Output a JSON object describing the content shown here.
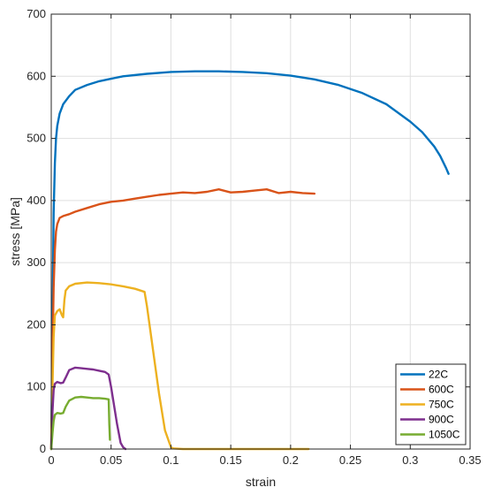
{
  "chart_data": {
    "type": "line",
    "title": "",
    "xlabel": "strain",
    "ylabel": "stress [MPa]",
    "xlim": [
      0,
      0.35
    ],
    "ylim": [
      0,
      700
    ],
    "xticks": [
      0,
      0.05,
      0.1,
      0.15,
      0.2,
      0.25,
      0.3,
      0.35
    ],
    "xtick_labels": [
      "0",
      "0.05",
      "0.1",
      "0.15",
      "0.2",
      "0.25",
      "0.3",
      "0.35"
    ],
    "yticks": [
      0,
      100,
      200,
      300,
      400,
      500,
      600,
      700
    ],
    "ytick_labels": [
      "0",
      "100",
      "200",
      "300",
      "400",
      "500",
      "600",
      "700"
    ],
    "grid": true,
    "legend_position": "bottom-right",
    "series": [
      {
        "name": "22C",
        "color": "#0072BD",
        "x": [
          0,
          0.001,
          0.002,
          0.003,
          0.004,
          0.005,
          0.007,
          0.01,
          0.015,
          0.02,
          0.03,
          0.04,
          0.05,
          0.06,
          0.08,
          0.1,
          0.12,
          0.14,
          0.16,
          0.18,
          0.2,
          0.22,
          0.24,
          0.26,
          0.28,
          0.3,
          0.31,
          0.32,
          0.325,
          0.33,
          0.332
        ],
        "y": [
          0,
          200,
          380,
          460,
          500,
          520,
          540,
          555,
          568,
          578,
          586,
          592,
          596,
          600,
          604,
          607,
          608,
          608,
          607,
          605,
          601,
          595,
          586,
          573,
          555,
          527,
          510,
          487,
          472,
          452,
          443
        ]
      },
      {
        "name": "600C",
        "color": "#D95319",
        "x": [
          0,
          0.001,
          0.002,
          0.003,
          0.004,
          0.005,
          0.007,
          0.01,
          0.015,
          0.02,
          0.03,
          0.04,
          0.05,
          0.06,
          0.07,
          0.08,
          0.09,
          0.1,
          0.11,
          0.12,
          0.13,
          0.14,
          0.15,
          0.16,
          0.17,
          0.18,
          0.19,
          0.2,
          0.21,
          0.22
        ],
        "y": [
          0,
          150,
          260,
          320,
          350,
          362,
          372,
          375,
          378,
          382,
          388,
          394,
          398,
          400,
          403,
          406,
          409,
          411,
          413,
          412,
          414,
          418,
          413,
          414,
          416,
          418,
          412,
          414,
          412,
          411
        ]
      },
      {
        "name": "750C",
        "color": "#EDB120",
        "x": [
          0,
          0.001,
          0.002,
          0.003,
          0.005,
          0.007,
          0.009,
          0.01,
          0.011,
          0.012,
          0.015,
          0.02,
          0.03,
          0.04,
          0.05,
          0.06,
          0.07,
          0.078,
          0.08,
          0.085,
          0.09,
          0.095,
          0.1,
          0.102,
          0.11,
          0.15,
          0.2,
          0.215
        ],
        "y": [
          0,
          100,
          180,
          215,
          222,
          225,
          215,
          212,
          240,
          255,
          262,
          266,
          268,
          267,
          265,
          262,
          258,
          253,
          230,
          160,
          90,
          30,
          3,
          1,
          0,
          0,
          0,
          0
        ]
      },
      {
        "name": "900C",
        "color": "#7E2F8E",
        "x": [
          0,
          0.001,
          0.002,
          0.003,
          0.005,
          0.008,
          0.01,
          0.012,
          0.015,
          0.02,
          0.025,
          0.03,
          0.035,
          0.04,
          0.045,
          0.048,
          0.05,
          0.055,
          0.058,
          0.06,
          0.062
        ],
        "y": [
          0,
          60,
          95,
          105,
          108,
          106,
          107,
          115,
          127,
          131,
          130,
          129,
          128,
          126,
          124,
          120,
          100,
          40,
          10,
          3,
          0
        ]
      },
      {
        "name": "1050C",
        "color": "#77AC30",
        "x": [
          0,
          0.001,
          0.002,
          0.003,
          0.005,
          0.008,
          0.01,
          0.012,
          0.015,
          0.02,
          0.025,
          0.03,
          0.035,
          0.04,
          0.045,
          0.048,
          0.0485,
          0.049
        ],
        "y": [
          0,
          25,
          45,
          55,
          58,
          57,
          58,
          68,
          78,
          83,
          84,
          83,
          82,
          82,
          81,
          80,
          40,
          15
        ]
      }
    ]
  }
}
